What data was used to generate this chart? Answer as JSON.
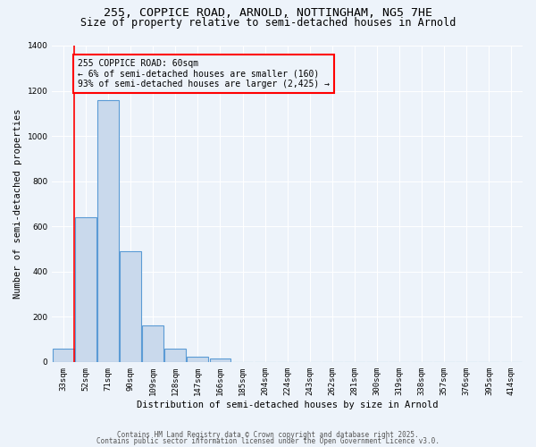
{
  "title": "255, COPPICE ROAD, ARNOLD, NOTTINGHAM, NG5 7HE",
  "subtitle": "Size of property relative to semi-detached houses in Arnold",
  "xlabel": "Distribution of semi-detached houses by size in Arnold",
  "ylabel": "Number of semi-detached properties",
  "bar_color": "#c9d9ec",
  "bar_edge_color": "#5b9bd5",
  "categories": [
    "33sqm",
    "52sqm",
    "71sqm",
    "90sqm",
    "109sqm",
    "128sqm",
    "147sqm",
    "166sqm",
    "185sqm",
    "204sqm",
    "224sqm",
    "243sqm",
    "262sqm",
    "281sqm",
    "300sqm",
    "319sqm",
    "338sqm",
    "357sqm",
    "376sqm",
    "395sqm",
    "414sqm"
  ],
  "values": [
    60,
    640,
    1160,
    490,
    160,
    60,
    25,
    15,
    0,
    0,
    0,
    0,
    0,
    0,
    0,
    0,
    0,
    0,
    0,
    0,
    0
  ],
  "ylim": [
    0,
    1400
  ],
  "yticks": [
    0,
    200,
    400,
    600,
    800,
    1000,
    1200,
    1400
  ],
  "red_line_x": 1,
  "annotation_title": "255 COPPICE ROAD: 60sqm",
  "annotation_line1": "← 6% of semi-detached houses are smaller (160)",
  "annotation_line2": "93% of semi-detached houses are larger (2,425) →",
  "footer1": "Contains HM Land Registry data © Crown copyright and database right 2025.",
  "footer2": "Contains public sector information licensed under the Open Government Licence v3.0.",
  "background_color": "#edf3fa",
  "grid_color": "#ffffff",
  "title_fontsize": 9.5,
  "subtitle_fontsize": 8.5,
  "tick_fontsize": 6.5,
  "ylabel_fontsize": 7.5,
  "xlabel_fontsize": 7.5,
  "annotation_fontsize": 7,
  "footer_fontsize": 5.5
}
